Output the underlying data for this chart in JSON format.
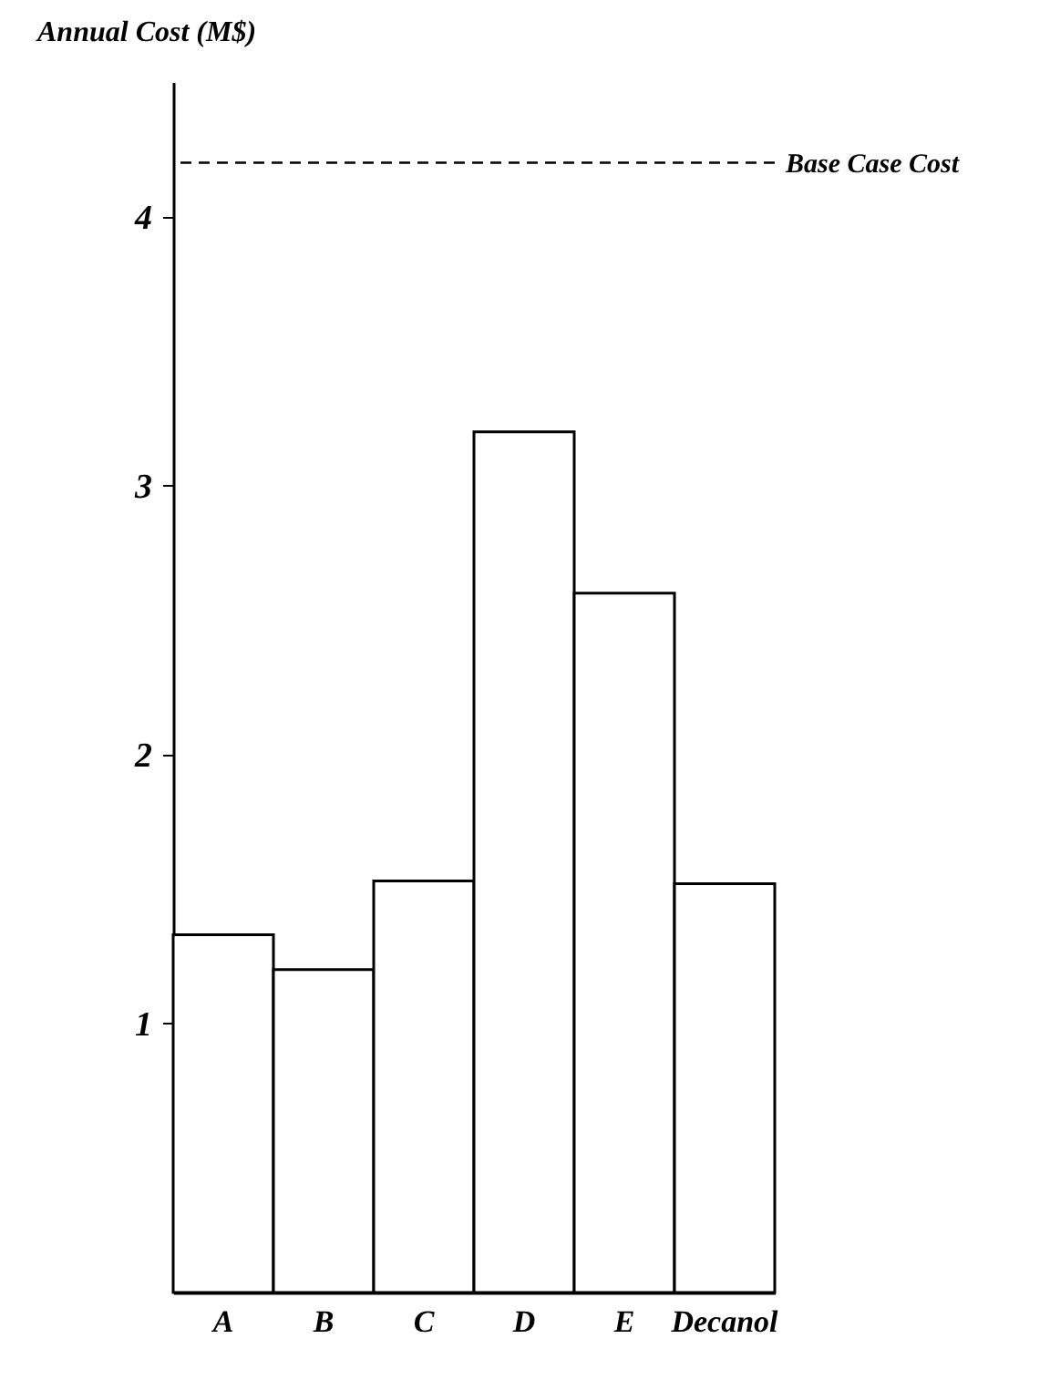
{
  "chart_data": {
    "type": "bar",
    "ylabel": "Annual Cost (M$)",
    "categories": [
      "A",
      "B",
      "C",
      "D",
      "E",
      "Decanol"
    ],
    "values": [
      1.33,
      1.2,
      1.53,
      3.2,
      2.6,
      1.52
    ],
    "color": "#ffffff",
    "ylim": [
      0,
      4.5
    ],
    "yticks": [
      1,
      2,
      3,
      4
    ],
    "grid": false,
    "ref_lines": [
      {
        "axis": "y",
        "value": 4.2,
        "label": "Base Case Cost",
        "line_style": "dashed",
        "color": "#000000"
      }
    ]
  }
}
